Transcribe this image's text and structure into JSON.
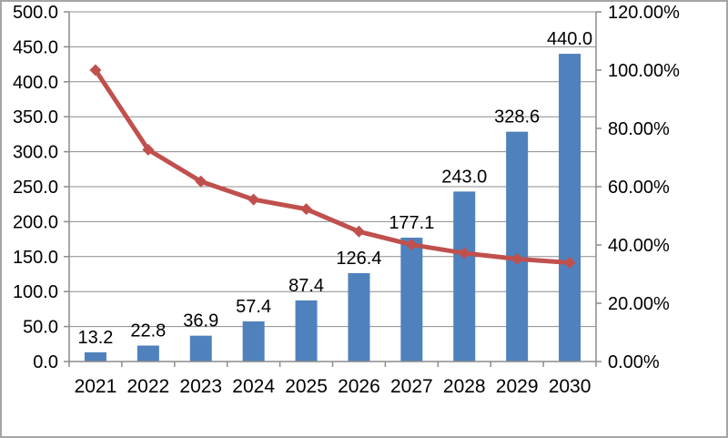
{
  "frame": {
    "background": "#ffffff",
    "border_color": "#a6a6a6"
  },
  "chart_data": {
    "type": "bar",
    "subtype": "combo-bar-line",
    "title": "",
    "categories": [
      "2021",
      "2022",
      "2023",
      "2024",
      "2025",
      "2026",
      "2027",
      "2028",
      "2029",
      "2030"
    ],
    "series": [
      {
        "name": "annual-value-bars",
        "type": "bar",
        "axis": "left",
        "color": "#4F81BD",
        "values": [
          13.2,
          22.8,
          36.9,
          57.4,
          87.4,
          126.4,
          177.1,
          243.0,
          328.6,
          440.0
        ],
        "data_labels": [
          "13.2",
          "22.8",
          "36.9",
          "57.4",
          "87.4",
          "126.4",
          "177.1",
          "243.0",
          "328.6",
          "440.0"
        ]
      },
      {
        "name": "growth-rate-line",
        "type": "line",
        "axis": "right",
        "color": "#C0504D",
        "marker": "diamond",
        "values_percent": [
          100.0,
          72.7,
          61.8,
          55.6,
          52.3,
          44.6,
          40.1,
          37.2,
          35.2,
          33.9
        ]
      }
    ],
    "left_axis": {
      "min": 0,
      "max": 500,
      "step": 50,
      "tick_labels": [
        "0.0",
        "50.0",
        "100.0",
        "150.0",
        "200.0",
        "250.0",
        "300.0",
        "350.0",
        "400.0",
        "450.0",
        "500.0"
      ]
    },
    "right_axis": {
      "min_percent": 0,
      "max_percent": 120,
      "step_percent": 20,
      "tick_labels": [
        "0.00%",
        "20.00%",
        "40.00%",
        "60.00%",
        "80.00%",
        "100.00%",
        "120.00%"
      ]
    },
    "grid": {
      "horizontal": true,
      "color": "#8c8c8c"
    },
    "axis_color": "#8c8c8c",
    "text_color": "#000000",
    "legend_position": "none"
  }
}
